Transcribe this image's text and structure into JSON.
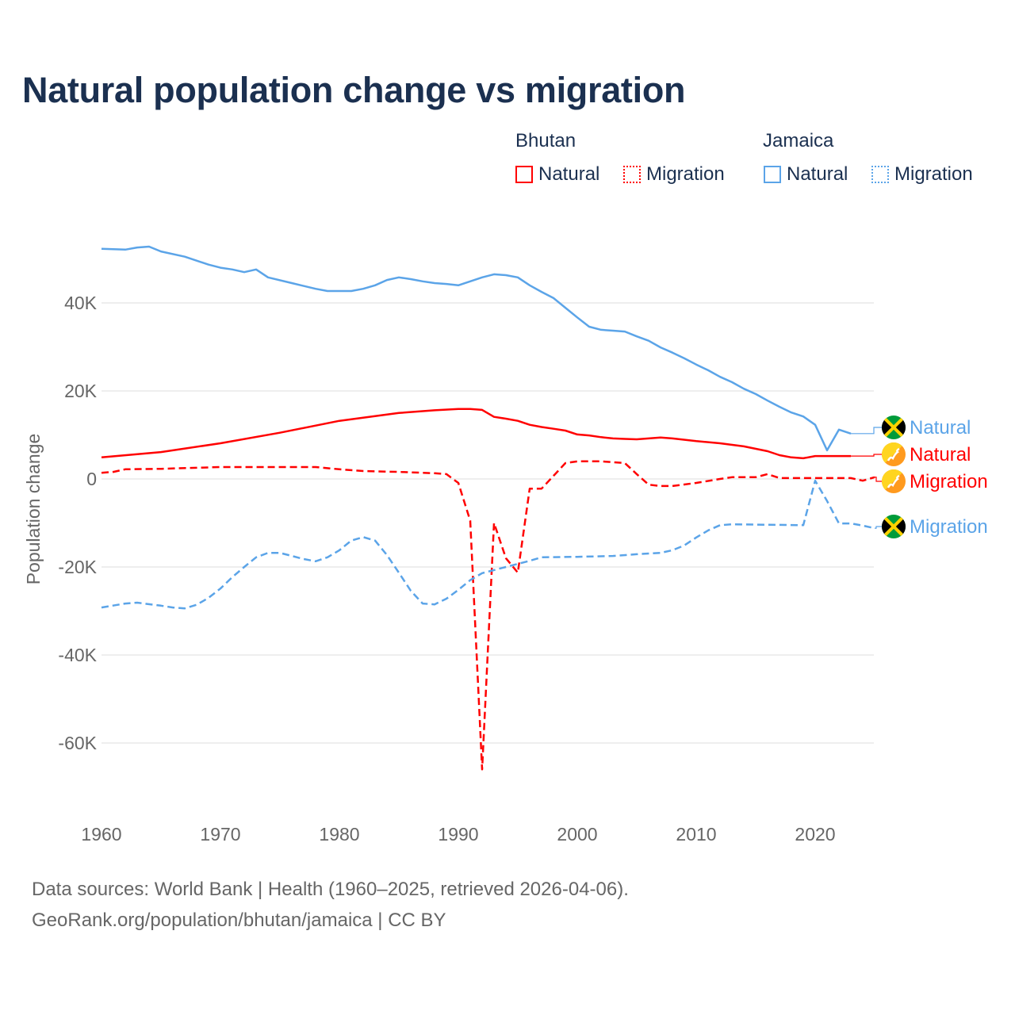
{
  "chart_data": {
    "type": "line",
    "title": "Natural population change vs migration",
    "xlabel": "",
    "ylabel": "Population change",
    "xlim": [
      1960,
      2025
    ],
    "ylim": [
      -70000,
      55000
    ],
    "grid": true,
    "x_ticks": [
      1960,
      1970,
      1980,
      1990,
      2000,
      2010,
      2020
    ],
    "x_tick_labels": [
      "1960",
      "1970",
      "1980",
      "1990",
      "2000",
      "2010",
      "2020"
    ],
    "y_ticks": [
      40000,
      20000,
      0,
      -20000,
      -40000,
      -60000
    ],
    "y_tick_labels": [
      "40K",
      "20K",
      "0",
      "-20K",
      "-40K",
      "-60K"
    ],
    "legend": {
      "placement": "top-right",
      "groups": [
        {
          "country": "Bhutan",
          "items": [
            "Natural",
            "Migration"
          ]
        },
        {
          "country": "Jamaica",
          "items": [
            "Natural",
            "Migration"
          ]
        }
      ]
    },
    "colors": {
      "Bhutan": "#ff0000",
      "Jamaica": "#5ba4e8"
    },
    "series": [
      {
        "name": "Jamaica Natural",
        "country": "Jamaica",
        "kind": "Natural",
        "dash": "solid",
        "end_label": "Natural",
        "flag": "jamaica-flag",
        "points": [
          [
            1960,
            52300
          ],
          [
            1962,
            52100
          ],
          [
            1963,
            52600
          ],
          [
            1964,
            52800
          ],
          [
            1965,
            51700
          ],
          [
            1967,
            50500
          ],
          [
            1969,
            48700
          ],
          [
            1970,
            48000
          ],
          [
            1971,
            47600
          ],
          [
            1972,
            47000
          ],
          [
            1973,
            47600
          ],
          [
            1974,
            45800
          ],
          [
            1976,
            44500
          ],
          [
            1978,
            43200
          ],
          [
            1979,
            42700
          ],
          [
            1981,
            42700
          ],
          [
            1982,
            43200
          ],
          [
            1983,
            44000
          ],
          [
            1984,
            45200
          ],
          [
            1985,
            45800
          ],
          [
            1986,
            45400
          ],
          [
            1987,
            44900
          ],
          [
            1988,
            44500
          ],
          [
            1989,
            44300
          ],
          [
            1990,
            44000
          ],
          [
            1991,
            44900
          ],
          [
            1992,
            45800
          ],
          [
            1993,
            46500
          ],
          [
            1994,
            46300
          ],
          [
            1995,
            45800
          ],
          [
            1996,
            44000
          ],
          [
            1997,
            42500
          ],
          [
            1998,
            41100
          ],
          [
            1999,
            38900
          ],
          [
            2000,
            36700
          ],
          [
            2001,
            34600
          ],
          [
            2002,
            33900
          ],
          [
            2003,
            33700
          ],
          [
            2004,
            33500
          ],
          [
            2005,
            32400
          ],
          [
            2006,
            31400
          ],
          [
            2007,
            29900
          ],
          [
            2008,
            28700
          ],
          [
            2009,
            27400
          ],
          [
            2010,
            26000
          ],
          [
            2011,
            24700
          ],
          [
            2012,
            23200
          ],
          [
            2013,
            22000
          ],
          [
            2014,
            20500
          ],
          [
            2015,
            19300
          ],
          [
            2016,
            17800
          ],
          [
            2017,
            16400
          ],
          [
            2018,
            15100
          ],
          [
            2019,
            14200
          ],
          [
            2020,
            12300
          ],
          [
            2021,
            6500
          ],
          [
            2022,
            11200
          ],
          [
            2023,
            10300
          ]
        ]
      },
      {
        "name": "Bhutan Natural",
        "country": "Bhutan",
        "kind": "Natural",
        "dash": "solid",
        "end_label": "Natural",
        "flag": "bhutan-flag",
        "points": [
          [
            1960,
            4900
          ],
          [
            1965,
            6100
          ],
          [
            1970,
            8100
          ],
          [
            1975,
            10500
          ],
          [
            1980,
            13200
          ],
          [
            1985,
            15000
          ],
          [
            1988,
            15600
          ],
          [
            1990,
            15900
          ],
          [
            1991,
            15900
          ],
          [
            1992,
            15700
          ],
          [
            1993,
            14100
          ],
          [
            1994,
            13700
          ],
          [
            1995,
            13200
          ],
          [
            1996,
            12300
          ],
          [
            1997,
            11800
          ],
          [
            1998,
            11400
          ],
          [
            1999,
            11000
          ],
          [
            2000,
            10100
          ],
          [
            2001,
            9900
          ],
          [
            2002,
            9500
          ],
          [
            2003,
            9200
          ],
          [
            2004,
            9100
          ],
          [
            2005,
            9000
          ],
          [
            2007,
            9400
          ],
          [
            2008,
            9200
          ],
          [
            2010,
            8600
          ],
          [
            2012,
            8100
          ],
          [
            2014,
            7400
          ],
          [
            2016,
            6300
          ],
          [
            2017,
            5400
          ],
          [
            2018,
            4900
          ],
          [
            2019,
            4700
          ],
          [
            2020,
            5200
          ],
          [
            2021,
            5200
          ],
          [
            2022,
            5200
          ],
          [
            2023,
            5200
          ]
        ]
      },
      {
        "name": "Bhutan Migration",
        "country": "Bhutan",
        "kind": "Migration",
        "dash": "dashed",
        "end_label": "Migration",
        "flag": "bhutan-flag",
        "points": [
          [
            1960,
            1400
          ],
          [
            1961,
            1600
          ],
          [
            1962,
            2200
          ],
          [
            1965,
            2300
          ],
          [
            1970,
            2700
          ],
          [
            1978,
            2700
          ],
          [
            1980,
            2200
          ],
          [
            1982,
            1800
          ],
          [
            1985,
            1600
          ],
          [
            1988,
            1300
          ],
          [
            1989,
            1100
          ],
          [
            1990,
            -900
          ],
          [
            1991,
            -9500
          ],
          [
            1992,
            -66000
          ],
          [
            1993,
            -10000
          ],
          [
            1994,
            -18000
          ],
          [
            1995,
            -21300
          ],
          [
            1996,
            -2200
          ],
          [
            1997,
            -2200
          ],
          [
            1998,
            700
          ],
          [
            1999,
            3600
          ],
          [
            2000,
            4000
          ],
          [
            2002,
            4000
          ],
          [
            2003,
            3800
          ],
          [
            2004,
            3600
          ],
          [
            2005,
            1100
          ],
          [
            2006,
            -1300
          ],
          [
            2007,
            -1600
          ],
          [
            2008,
            -1600
          ],
          [
            2010,
            -900
          ],
          [
            2012,
            0
          ],
          [
            2013,
            400
          ],
          [
            2015,
            400
          ],
          [
            2016,
            1100
          ],
          [
            2017,
            200
          ],
          [
            2020,
            200
          ],
          [
            2023,
            200
          ],
          [
            2024,
            -400
          ],
          [
            2025,
            400
          ]
        ]
      },
      {
        "name": "Jamaica Migration",
        "country": "Jamaica",
        "kind": "Migration",
        "dash": "dashed",
        "end_label": "Migration",
        "flag": "jamaica-flag",
        "points": [
          [
            1960,
            -29200
          ],
          [
            1962,
            -28300
          ],
          [
            1963,
            -28100
          ],
          [
            1965,
            -28800
          ],
          [
            1966,
            -29200
          ],
          [
            1967,
            -29400
          ],
          [
            1968,
            -28600
          ],
          [
            1969,
            -27000
          ],
          [
            1970,
            -24900
          ],
          [
            1971,
            -22300
          ],
          [
            1972,
            -20000
          ],
          [
            1973,
            -17800
          ],
          [
            1974,
            -16800
          ],
          [
            1975,
            -16800
          ],
          [
            1976,
            -17500
          ],
          [
            1977,
            -18200
          ],
          [
            1978,
            -18700
          ],
          [
            1979,
            -17800
          ],
          [
            1980,
            -16200
          ],
          [
            1981,
            -14000
          ],
          [
            1982,
            -13200
          ],
          [
            1983,
            -14000
          ],
          [
            1984,
            -17300
          ],
          [
            1985,
            -21300
          ],
          [
            1986,
            -25400
          ],
          [
            1987,
            -28300
          ],
          [
            1988,
            -28500
          ],
          [
            1989,
            -27200
          ],
          [
            1990,
            -25200
          ],
          [
            1991,
            -23000
          ],
          [
            1992,
            -21400
          ],
          [
            1993,
            -20700
          ],
          [
            1994,
            -20000
          ],
          [
            1995,
            -19300
          ],
          [
            1996,
            -18600
          ],
          [
            1997,
            -17800
          ],
          [
            2000,
            -17700
          ],
          [
            2003,
            -17500
          ],
          [
            2005,
            -17100
          ],
          [
            2007,
            -16800
          ],
          [
            2008,
            -16200
          ],
          [
            2009,
            -15100
          ],
          [
            2010,
            -13300
          ],
          [
            2011,
            -11700
          ],
          [
            2012,
            -10500
          ],
          [
            2013,
            -10300
          ],
          [
            2019,
            -10500
          ],
          [
            2020,
            -400
          ],
          [
            2021,
            -5000
          ],
          [
            2022,
            -10100
          ],
          [
            2023,
            -10100
          ],
          [
            2024,
            -10600
          ],
          [
            2025,
            -11200
          ]
        ]
      }
    ]
  },
  "footer": {
    "line1": "Data sources: World Bank | Health (1960–2025, retrieved 2026-04-06).",
    "line2": "GeoRank.org/population/bhutan/jamaica | CC BY"
  }
}
